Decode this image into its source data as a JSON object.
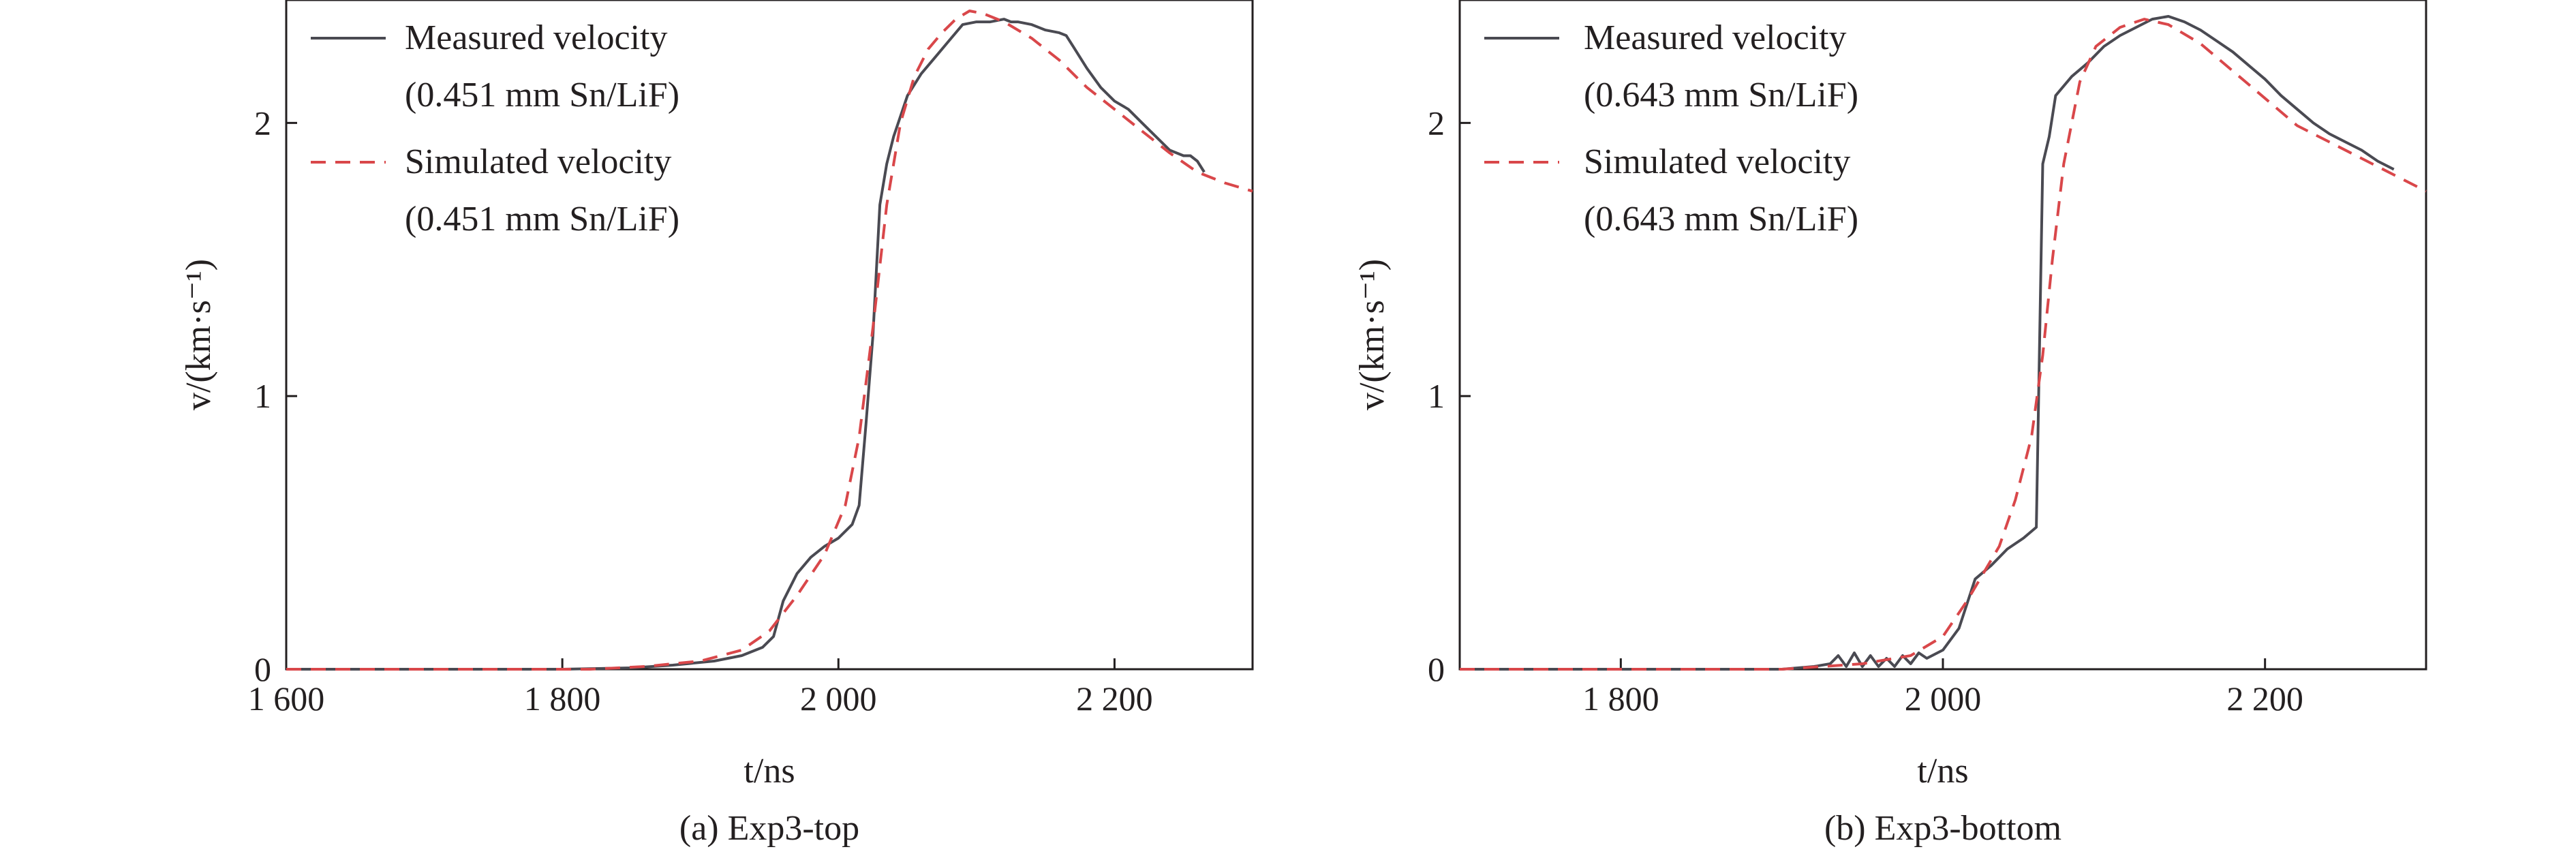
{
  "chart_data": [
    {
      "type": "line",
      "caption": "(a) Exp3-top",
      "xlabel": "t/ns",
      "ylabel": "v/(km·s⁻¹)",
      "xlim": [
        1600,
        2300
      ],
      "ylim": [
        0,
        2.45
      ],
      "xticks": [
        1600,
        1800,
        2000,
        2200
      ],
      "xtick_labels": [
        "1 600",
        "1 800",
        "2 000",
        "2 200"
      ],
      "yticks": [
        0,
        1,
        2
      ],
      "ytick_labels": [
        "0",
        "1",
        "2"
      ],
      "series": [
        {
          "name": "Measured velocity",
          "legend_sub": "(0.451 mm Sn/LiF)",
          "style": "solid",
          "color": "#4a4a52",
          "x": [
            1600,
            1800,
            1850,
            1880,
            1910,
            1930,
            1945,
            1953,
            1960,
            1970,
            1980,
            1990,
            2000,
            2010,
            2015,
            2020,
            2025,
            2030,
            2035,
            2040,
            2050,
            2060,
            2070,
            2080,
            2090,
            2100,
            2110,
            2120,
            2125,
            2130,
            2140,
            2150,
            2160,
            2165,
            2170,
            2180,
            2190,
            2200,
            2210,
            2220,
            2230,
            2240,
            2250,
            2255,
            2260,
            2265
          ],
          "y": [
            0,
            0,
            0.005,
            0.015,
            0.03,
            0.05,
            0.08,
            0.12,
            0.25,
            0.35,
            0.41,
            0.45,
            0.48,
            0.53,
            0.6,
            0.9,
            1.22,
            1.7,
            1.85,
            1.95,
            2.1,
            2.18,
            2.24,
            2.3,
            2.36,
            2.37,
            2.37,
            2.38,
            2.37,
            2.37,
            2.36,
            2.34,
            2.33,
            2.32,
            2.28,
            2.2,
            2.13,
            2.08,
            2.05,
            2.0,
            1.95,
            1.9,
            1.88,
            1.88,
            1.86,
            1.82
          ]
        },
        {
          "name": "Simulated velocity",
          "legend_sub": "(0.451 mm Sn/LiF)",
          "style": "dashed",
          "color": "#d9474a",
          "x": [
            1600,
            1820,
            1860,
            1900,
            1930,
            1950,
            1970,
            1990,
            2005,
            2015,
            2025,
            2035,
            2045,
            2055,
            2065,
            2075,
            2085,
            2095,
            2105,
            2120,
            2140,
            2160,
            2180,
            2200,
            2220,
            2240,
            2260,
            2280,
            2300
          ],
          "y": [
            0,
            0,
            0.01,
            0.03,
            0.07,
            0.14,
            0.27,
            0.42,
            0.6,
            0.85,
            1.25,
            1.7,
            2.0,
            2.17,
            2.27,
            2.33,
            2.38,
            2.41,
            2.4,
            2.37,
            2.31,
            2.23,
            2.13,
            2.05,
            1.97,
            1.89,
            1.82,
            1.78,
            1.75
          ]
        }
      ]
    },
    {
      "type": "line",
      "caption": "(b) Exp3-bottom",
      "xlabel": "t/ns",
      "ylabel": "v/(km·s⁻¹)",
      "xlim": [
        1700,
        2300
      ],
      "ylim": [
        0,
        2.45
      ],
      "xticks": [
        1800,
        2000,
        2200
      ],
      "xtick_labels": [
        "1 800",
        "2 000",
        "2 200"
      ],
      "yticks": [
        0,
        1,
        2
      ],
      "ytick_labels": [
        "0",
        "1",
        "2"
      ],
      "series": [
        {
          "name": "Measured velocity",
          "legend_sub": "(0.643 mm Sn/LiF)",
          "style": "solid",
          "color": "#4a4a52",
          "x": [
            1700,
            1900,
            1920,
            1930,
            1935,
            1940,
            1945,
            1950,
            1955,
            1960,
            1965,
            1970,
            1975,
            1980,
            1985,
            1990,
            2000,
            2010,
            2020,
            2030,
            2040,
            2050,
            2058,
            2062,
            2066,
            2070,
            2080,
            2090,
            2100,
            2110,
            2120,
            2130,
            2140,
            2150,
            2160,
            2170,
            2180,
            2190,
            2200,
            2210,
            2220,
            2230,
            2240,
            2250,
            2260,
            2270,
            2280
          ],
          "y": [
            0,
            0,
            0.01,
            0.02,
            0.05,
            0.01,
            0.06,
            0.01,
            0.05,
            0.01,
            0.04,
            0.01,
            0.05,
            0.02,
            0.06,
            0.04,
            0.07,
            0.15,
            0.33,
            0.38,
            0.44,
            0.48,
            0.52,
            1.85,
            1.95,
            2.1,
            2.17,
            2.22,
            2.28,
            2.32,
            2.35,
            2.38,
            2.39,
            2.37,
            2.34,
            2.3,
            2.26,
            2.21,
            2.16,
            2.1,
            2.05,
            2.0,
            1.96,
            1.93,
            1.9,
            1.86,
            1.83
          ]
        },
        {
          "name": "Simulated velocity",
          "legend_sub": "(0.643 mm Sn/LiF)",
          "style": "dashed",
          "color": "#d9474a",
          "x": [
            1700,
            1900,
            1950,
            1980,
            2000,
            2015,
            2025,
            2035,
            2045,
            2055,
            2062,
            2068,
            2075,
            2085,
            2095,
            2110,
            2125,
            2140,
            2160,
            2180,
            2200,
            2220,
            2240,
            2260,
            2280,
            2300
          ],
          "y": [
            0,
            0,
            0.02,
            0.05,
            0.12,
            0.25,
            0.35,
            0.45,
            0.62,
            0.85,
            1.15,
            1.5,
            1.85,
            2.15,
            2.28,
            2.35,
            2.38,
            2.36,
            2.29,
            2.19,
            2.09,
            1.99,
            1.93,
            1.87,
            1.81,
            1.75
          ]
        }
      ]
    }
  ]
}
